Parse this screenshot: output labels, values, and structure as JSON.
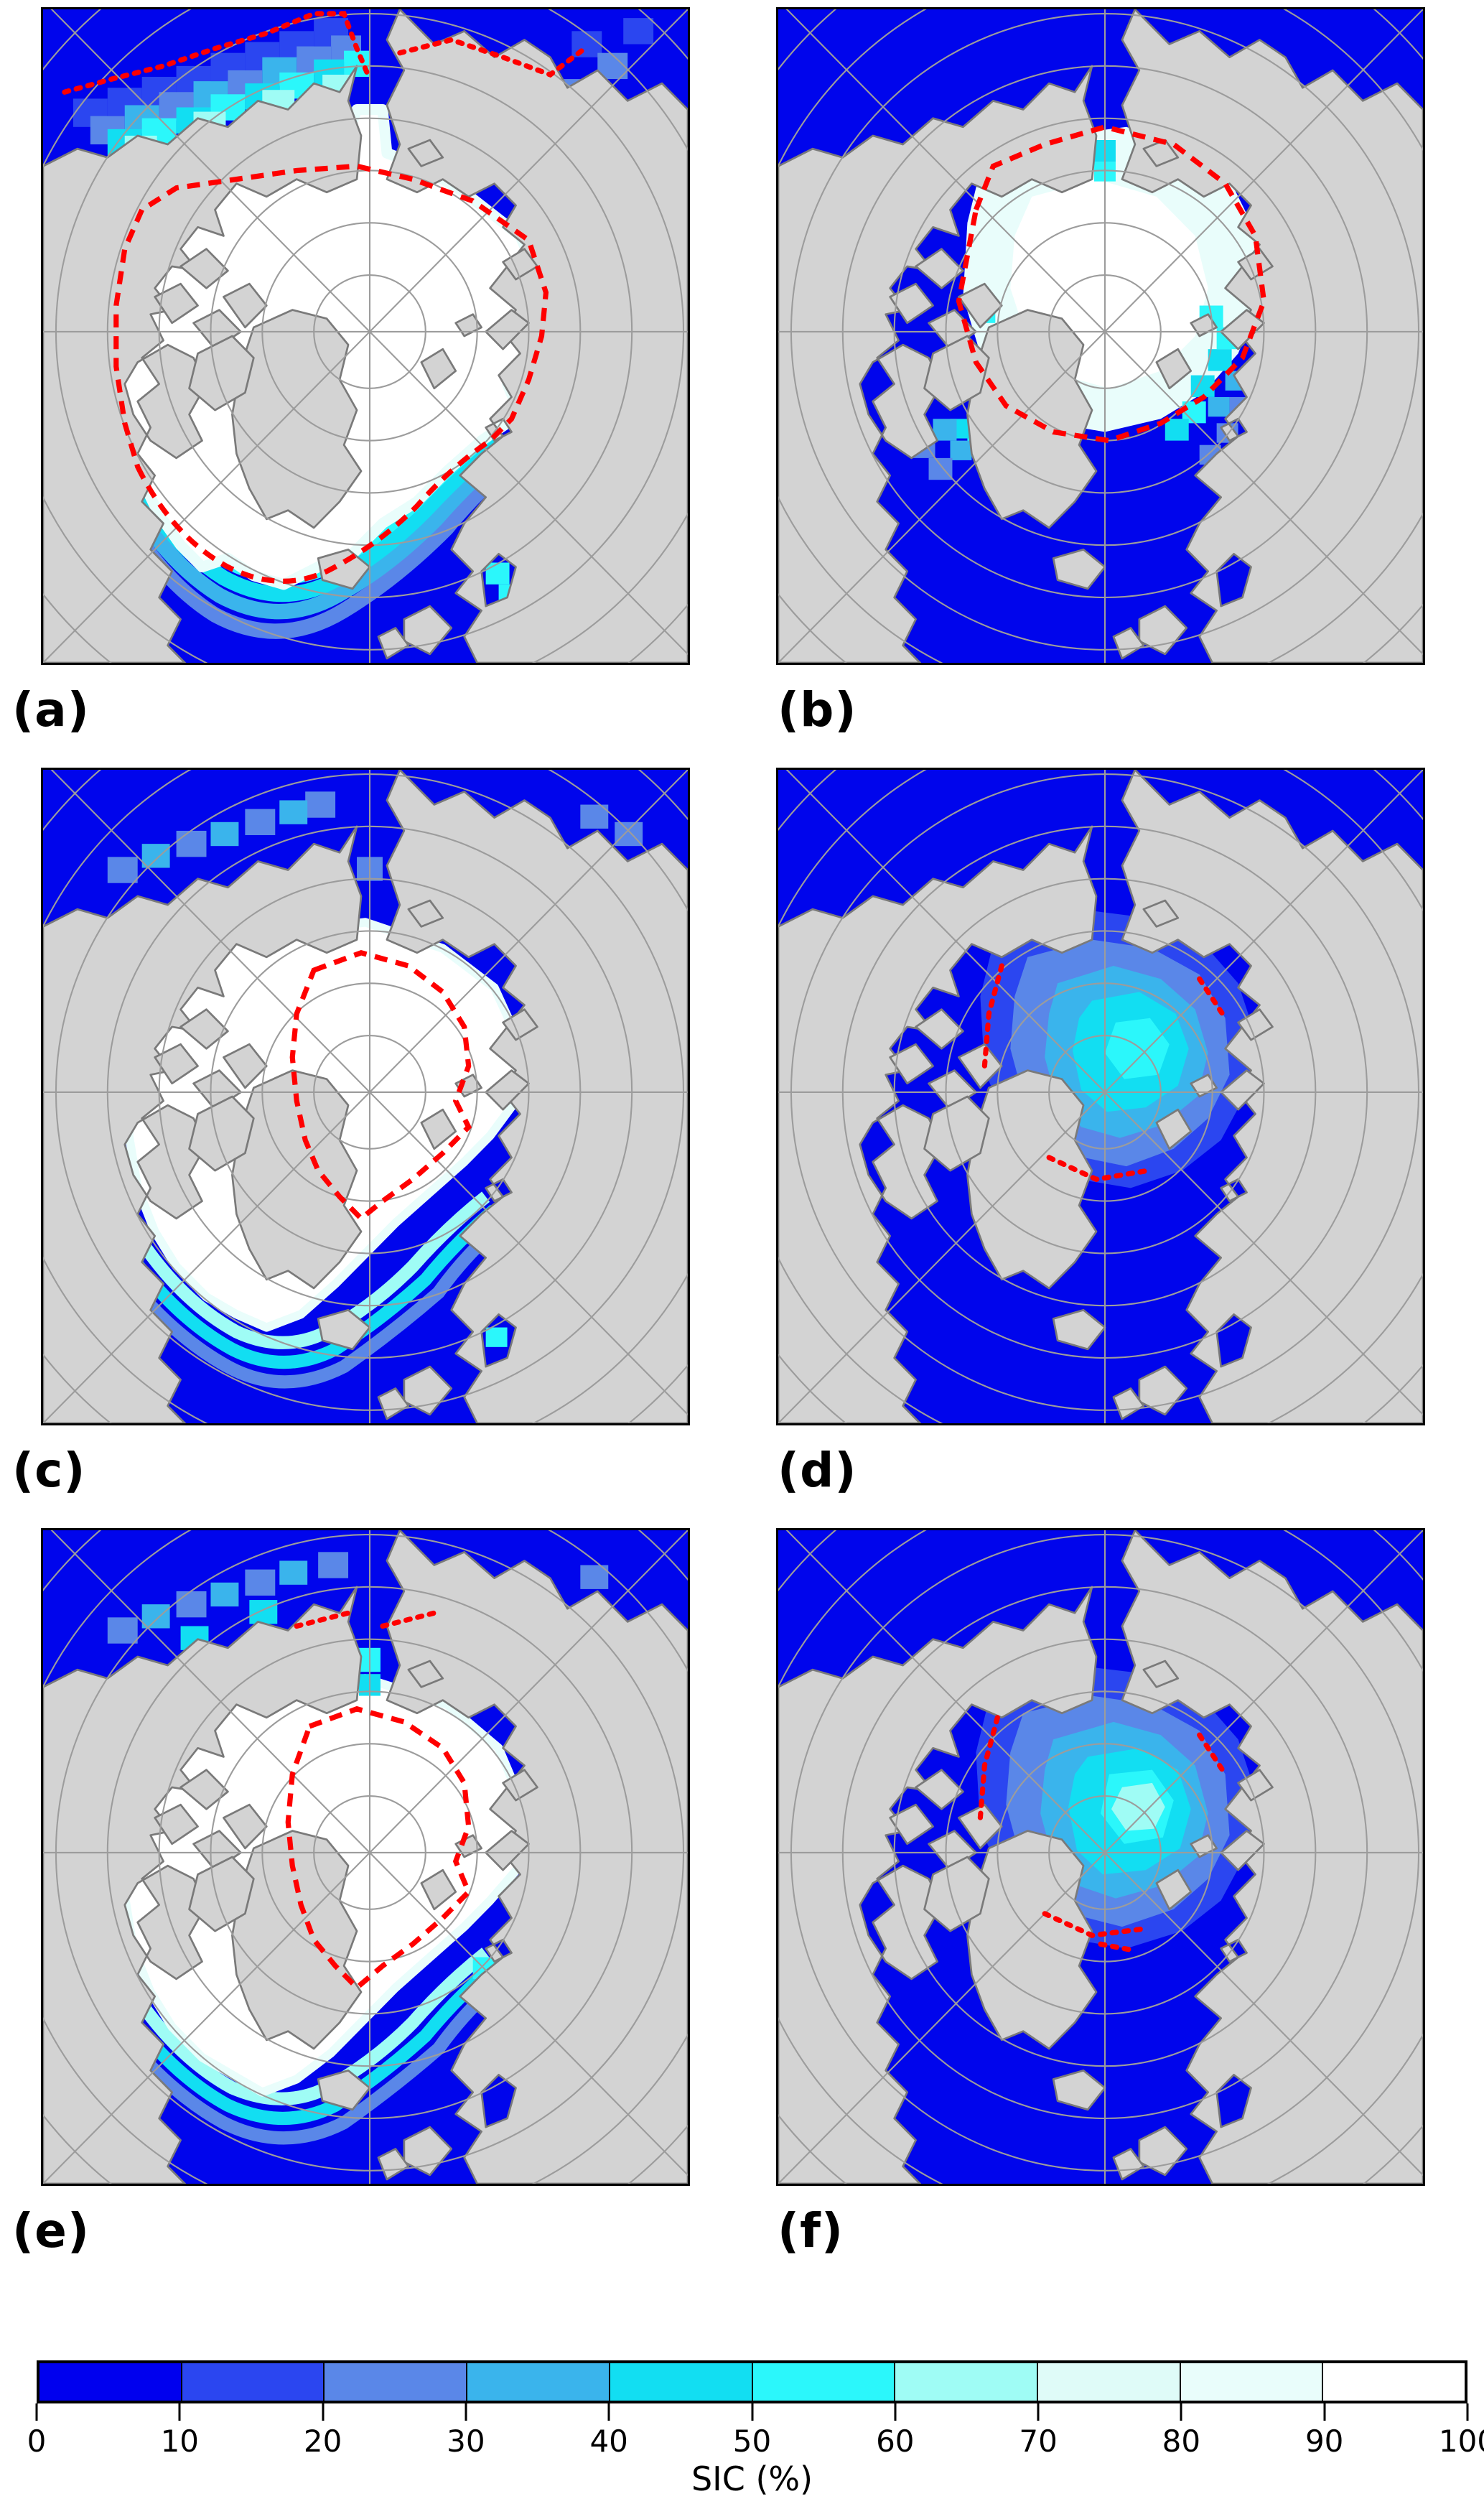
{
  "figure": {
    "panels": [
      {
        "id": "a",
        "label": "(a)"
      },
      {
        "id": "b",
        "label": "(b)"
      },
      {
        "id": "c",
        "label": "(c)"
      },
      {
        "id": "d",
        "label": "(d)"
      },
      {
        "id": "e",
        "label": "(e)"
      },
      {
        "id": "f",
        "label": "(f)"
      }
    ],
    "colorbar": {
      "title": "SIC (%)",
      "ticks": [
        0,
        10,
        20,
        30,
        40,
        50,
        60,
        70,
        80,
        90,
        100
      ],
      "colors": [
        "#0000EE",
        "#2B46F0",
        "#5A87E8",
        "#3AB4EC",
        "#12DEF2",
        "#2BF7FB",
        "#9FFCF5",
        "#DFFBF8",
        "#E9FDFB",
        "#FFFFFF"
      ]
    },
    "palette": {
      "ocean": "#0005EC",
      "land": "#D3D3D3",
      "coastline": "#7A7A7A",
      "graticule": "#9C9C9C",
      "contour": "#FF0000",
      "panel_border": "#000000",
      "page_background": "#FFFFFF"
    }
  }
}
